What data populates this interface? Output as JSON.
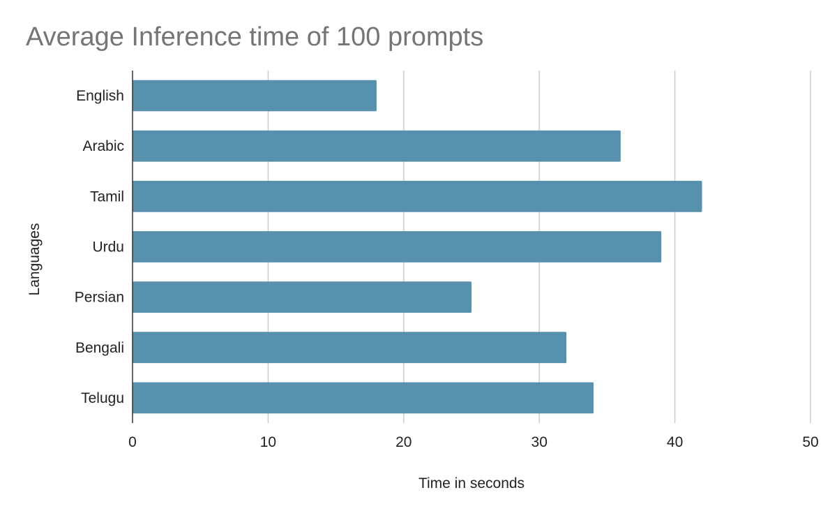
{
  "chart_data": {
    "type": "bar",
    "orientation": "horizontal",
    "title": "Average Inference time of 100 prompts",
    "xlabel": "Time in seconds",
    "ylabel": "Languages",
    "categories": [
      "English",
      "Arabic",
      "Tamil",
      "Urdu",
      "Persian",
      "Bengali",
      "Telugu"
    ],
    "values": [
      18,
      36,
      42,
      39,
      25,
      32,
      34
    ],
    "xlim": [
      0,
      50
    ],
    "xticks": [
      0,
      10,
      20,
      30,
      40,
      50
    ],
    "grid": "vertical",
    "legend": "none",
    "colors": {
      "bar": "#5791ae",
      "grid": "#cccccc",
      "axis": "#333333",
      "title": "#757575",
      "text": "#222222"
    }
  }
}
